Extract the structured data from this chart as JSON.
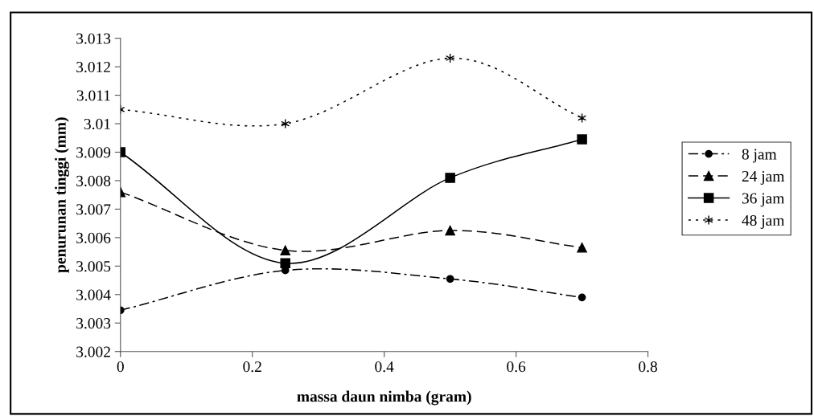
{
  "chart_data": {
    "type": "line",
    "xlabel": "massa daun nimba (gram)",
    "ylabel": "penurunan tinggi (mm)",
    "x": [
      0,
      0.25,
      0.5,
      0.7
    ],
    "series": [
      {
        "name": "8 jam",
        "color": "#000000",
        "marker": "circle",
        "line_style": "dashdot",
        "values": [
          3.00345,
          3.00485,
          3.00455,
          3.0039
        ]
      },
      {
        "name": "24 jam",
        "color": "#000000",
        "marker": "triangle",
        "line_style": "dashed",
        "values": [
          3.0076,
          3.00555,
          3.00625,
          3.00565
        ]
      },
      {
        "name": "36 jam",
        "color": "#000000",
        "marker": "square",
        "line_style": "solid",
        "values": [
          3.009,
          3.0051,
          3.0081,
          3.00945
        ]
      },
      {
        "name": "48 jam",
        "color": "#000000",
        "marker": "cross",
        "line_style": "dotted",
        "values": [
          3.0105,
          3.01,
          3.0123,
          3.0102
        ]
      }
    ],
    "xlim": [
      0,
      0.8
    ],
    "xticks": [
      0,
      0.2,
      0.4,
      0.6,
      0.8
    ],
    "ylim": [
      3.002,
      3.013
    ],
    "yticks": [
      3.002,
      3.003,
      3.004,
      3.005,
      3.006,
      3.007,
      3.008,
      3.009,
      3.01,
      3.011,
      3.012,
      3.013
    ],
    "grid": false,
    "legend": "right"
  }
}
